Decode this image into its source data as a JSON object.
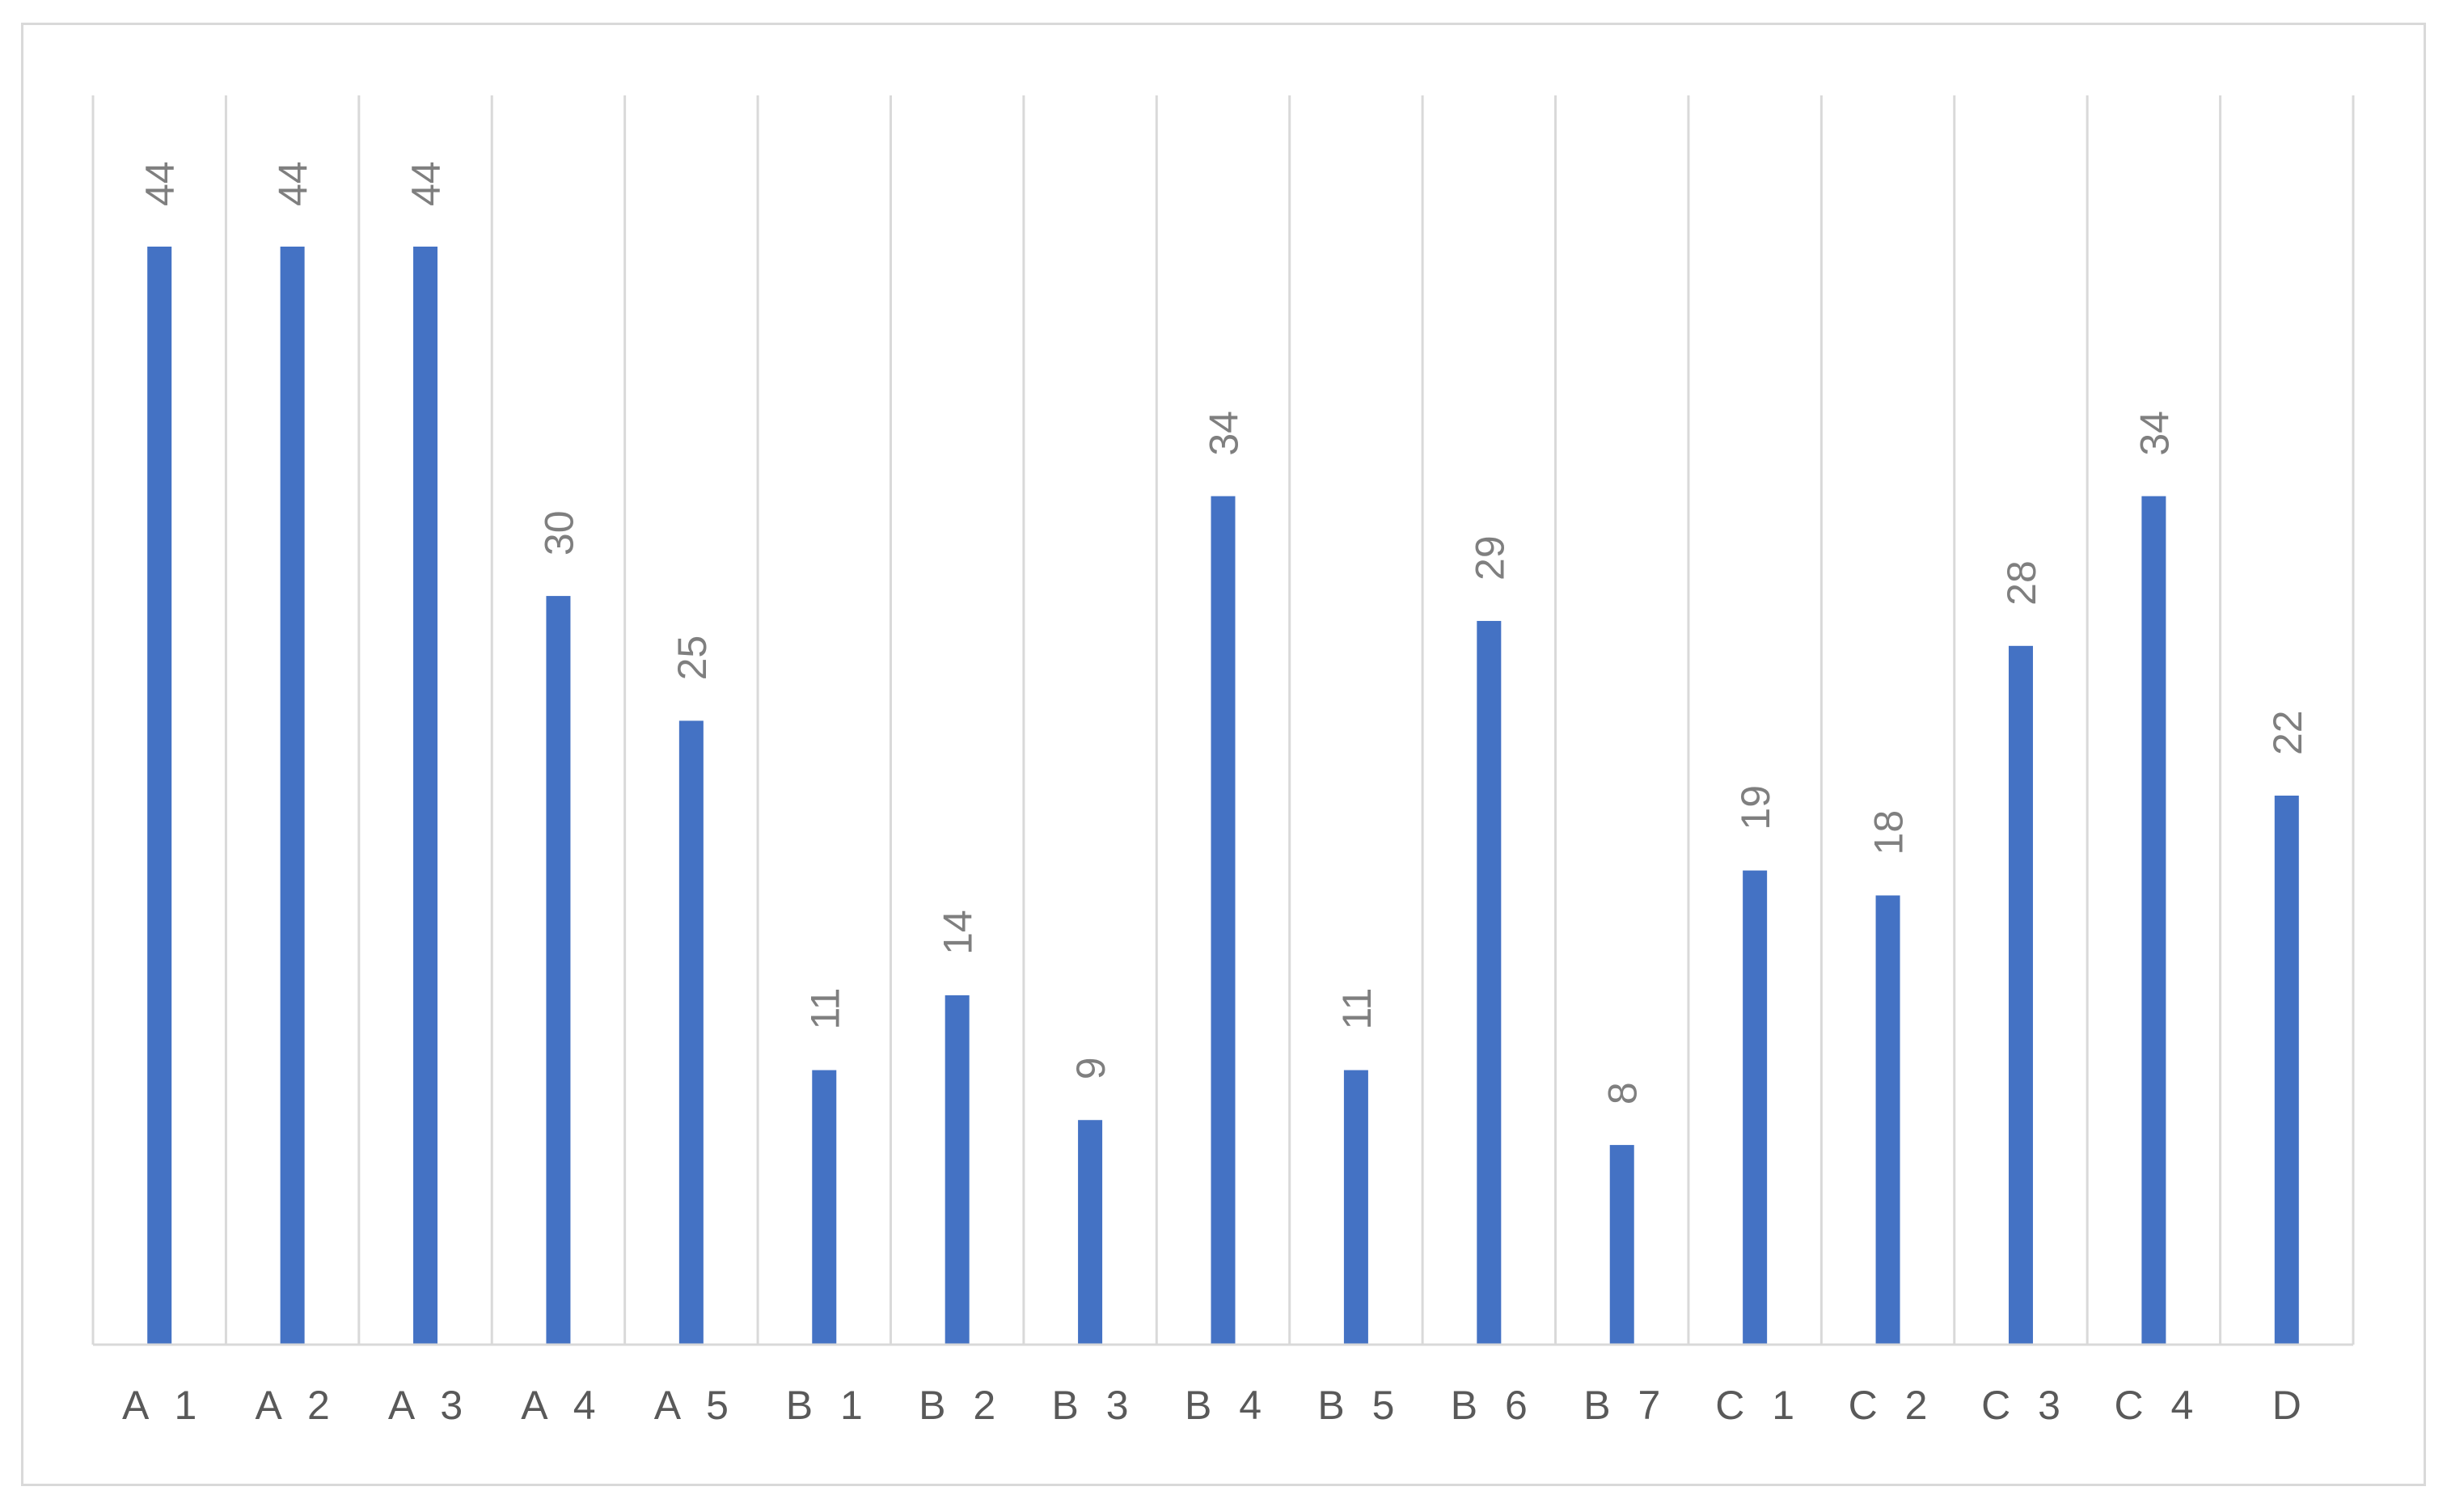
{
  "chart_data": {
    "type": "bar",
    "categories": [
      "A1",
      "A2",
      "A3",
      "A4",
      "A5",
      "B1",
      "B2",
      "B3",
      "B4",
      "B5",
      "B6",
      "B7",
      "C1",
      "C2",
      "C3",
      "C4",
      "D"
    ],
    "category_labels": [
      "A 1",
      "A 2",
      "A 3",
      "A 4",
      "A 5",
      "B 1",
      "B 2",
      "B 3",
      "B 4",
      "B 5",
      "B 6",
      "B 7",
      "C 1",
      "C 2",
      "C 3",
      "C 4",
      "D"
    ],
    "values": [
      44,
      44,
      44,
      30,
      25,
      11,
      14,
      9,
      34,
      11,
      29,
      8,
      19,
      18,
      28,
      34,
      22
    ],
    "ylim": [
      0,
      50
    ],
    "data_labels": "rotated-above-bars",
    "legend": "none",
    "grid": "vertical-category-lines",
    "y_axis_visible": false,
    "colors": {
      "bar": "#4472C4",
      "grid": "#d9d9d9",
      "axis": "#d9d9d9",
      "label_text": "#595959",
      "value_text": "#7f7f7f",
      "frame": "#d9d9d9"
    }
  }
}
